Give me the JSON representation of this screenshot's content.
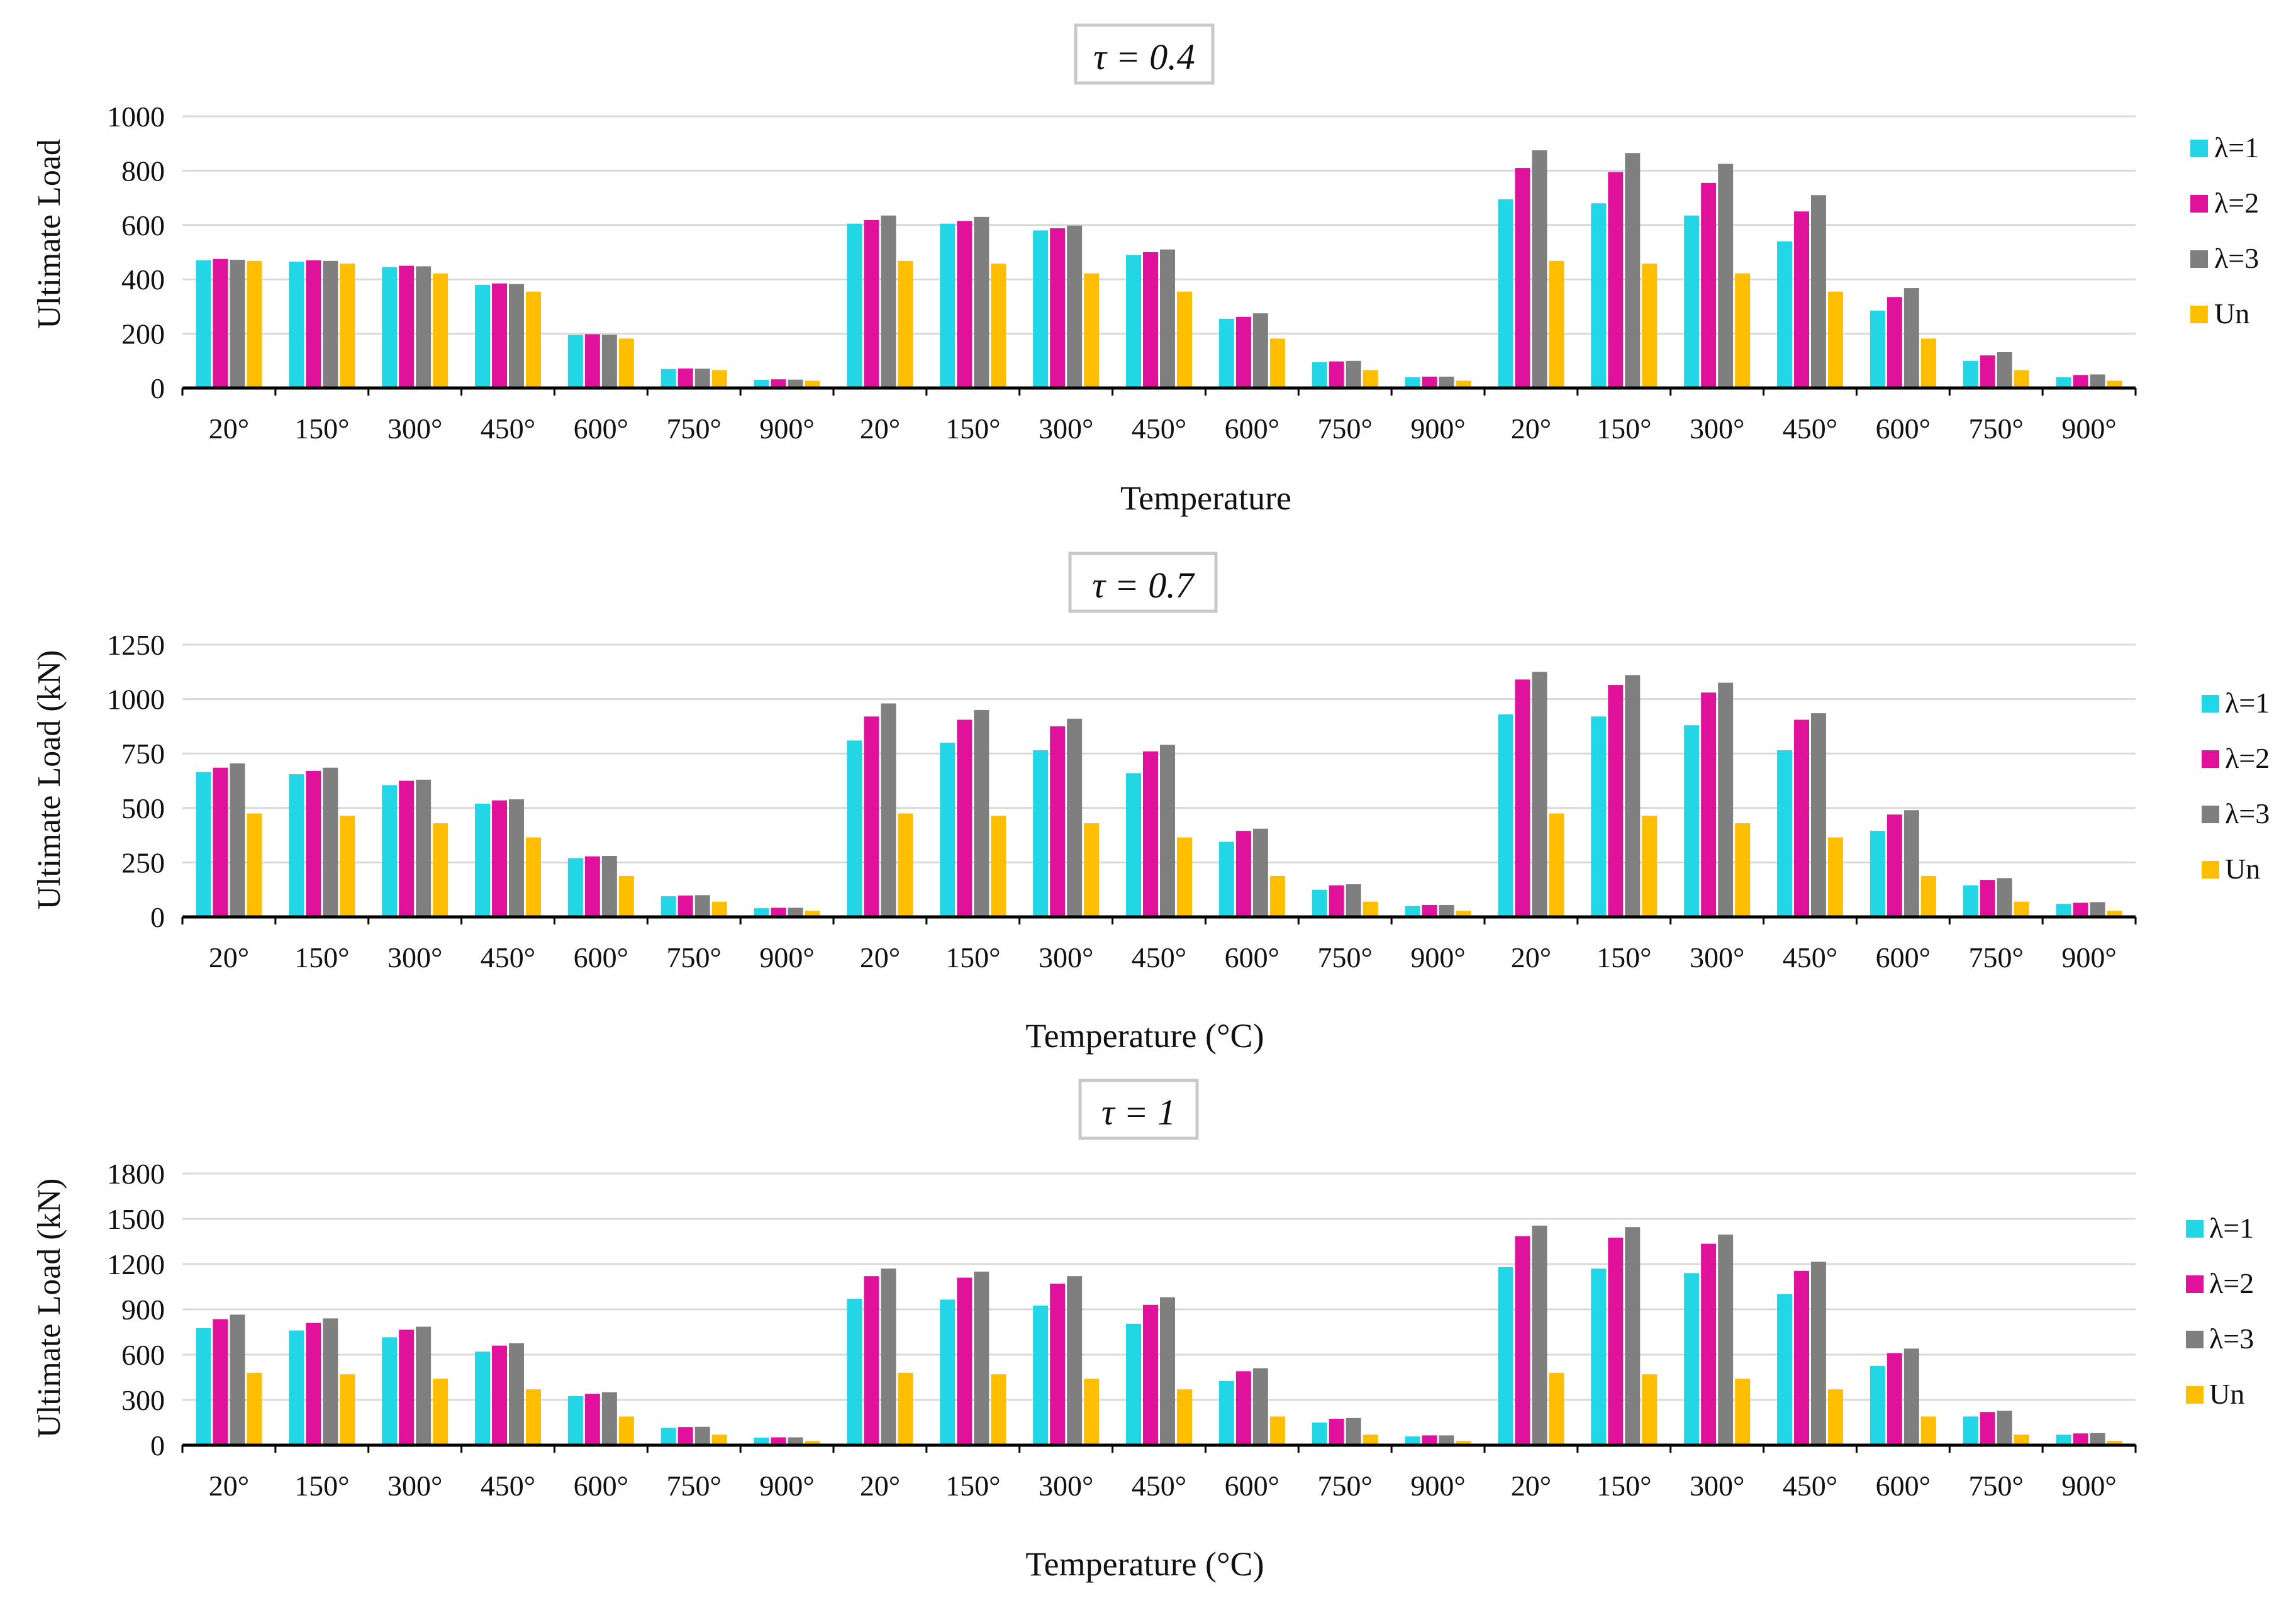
{
  "colors": {
    "lambda1": "#22d6e6",
    "lambda2": "#e0129b",
    "lambda3": "#7f7f7f",
    "un": "#ffbf00",
    "grid": "#d9d9d9",
    "axis": "#000000",
    "title_box_border": "#c8c8c8"
  },
  "chart_data": [
    {
      "type": "bar",
      "title": "τ = 0.4",
      "xlabel": "Temperature",
      "ylabel": "Ultimate Load",
      "ylim": [
        0,
        1000
      ],
      "yticks": [
        "0",
        "200",
        "400",
        "600",
        "800",
        "1000"
      ],
      "categories": [
        "20°",
        "150°",
        "300°",
        "450°",
        "600°",
        "750°",
        "900°",
        "20°",
        "150°",
        "300°",
        "450°",
        "600°",
        "750°",
        "900°",
        "20°",
        "150°",
        "300°",
        "450°",
        "600°",
        "750°",
        "900°"
      ],
      "legend_position": "right",
      "series": [
        {
          "name": "λ=1",
          "values": [
            470,
            465,
            445,
            380,
            195,
            70,
            30,
            605,
            605,
            580,
            490,
            255,
            95,
            40,
            695,
            680,
            635,
            540,
            285,
            100,
            40
          ]
        },
        {
          "name": "λ=2",
          "values": [
            475,
            470,
            450,
            385,
            198,
            72,
            32,
            618,
            615,
            588,
            500,
            262,
            98,
            42,
            810,
            795,
            755,
            650,
            335,
            120,
            48
          ]
        },
        {
          "name": "λ=3",
          "values": [
            472,
            468,
            448,
            383,
            196,
            71,
            31,
            635,
            630,
            598,
            510,
            275,
            100,
            42,
            875,
            865,
            825,
            710,
            368,
            132,
            50
          ]
        },
        {
          "name": "Un",
          "values": [
            468,
            458,
            422,
            355,
            182,
            66,
            27,
            468,
            458,
            422,
            355,
            182,
            66,
            27,
            468,
            458,
            422,
            355,
            182,
            66,
            27
          ]
        }
      ]
    },
    {
      "type": "bar",
      "title": "τ = 0.7",
      "xlabel": "Temperature (°C)",
      "ylabel": "Ultimate Load (kN)",
      "ylim": [
        0,
        1250
      ],
      "yticks": [
        "0",
        "250",
        "500",
        "750",
        "1000",
        "1250"
      ],
      "categories": [
        "20°",
        "150°",
        "300°",
        "450°",
        "600°",
        "750°",
        "900°",
        "20°",
        "150°",
        "300°",
        "450°",
        "600°",
        "750°",
        "900°",
        "20°",
        "150°",
        "300°",
        "450°",
        "600°",
        "750°",
        "900°"
      ],
      "legend_position": "right",
      "series": [
        {
          "name": "λ=1",
          "values": [
            665,
            655,
            605,
            520,
            270,
            95,
            40,
            810,
            800,
            765,
            660,
            345,
            125,
            50,
            930,
            920,
            880,
            765,
            395,
            145,
            60
          ]
        },
        {
          "name": "λ=2",
          "values": [
            685,
            670,
            625,
            535,
            278,
            98,
            42,
            920,
            905,
            875,
            760,
            395,
            145,
            55,
            1090,
            1065,
            1030,
            905,
            470,
            170,
            65
          ]
        },
        {
          "name": "λ=3",
          "values": [
            705,
            685,
            630,
            540,
            280,
            100,
            42,
            980,
            950,
            910,
            790,
            405,
            150,
            55,
            1125,
            1110,
            1075,
            935,
            490,
            178,
            68
          ]
        },
        {
          "name": "Un",
          "values": [
            475,
            465,
            430,
            365,
            188,
            70,
            28,
            475,
            465,
            430,
            365,
            188,
            70,
            28,
            475,
            465,
            430,
            365,
            188,
            70,
            28
          ]
        }
      ]
    },
    {
      "type": "bar",
      "title": "τ = 1",
      "xlabel": "Temperature (°C)",
      "ylabel": "Ultimate Load (kN)",
      "ylim": [
        0,
        1800
      ],
      "yticks": [
        "0",
        "300",
        "600",
        "900",
        "1200",
        "1500",
        "1800"
      ],
      "categories": [
        "20°",
        "150°",
        "300°",
        "450°",
        "600°",
        "750°",
        "900°",
        "20°",
        "150°",
        "300°",
        "450°",
        "600°",
        "750°",
        "900°",
        "20°",
        "150°",
        "300°",
        "450°",
        "600°",
        "750°",
        "900°"
      ],
      "legend_position": "right",
      "series": [
        {
          "name": "λ=1",
          "values": [
            775,
            760,
            715,
            620,
            325,
            115,
            50,
            970,
            965,
            925,
            805,
            425,
            150,
            58,
            1180,
            1170,
            1140,
            1000,
            525,
            190,
            70
          ]
        },
        {
          "name": "λ=2",
          "values": [
            835,
            810,
            765,
            660,
            340,
            120,
            52,
            1120,
            1110,
            1070,
            930,
            490,
            175,
            65,
            1385,
            1375,
            1335,
            1155,
            610,
            220,
            78
          ]
        },
        {
          "name": "λ=3",
          "values": [
            865,
            840,
            785,
            675,
            350,
            122,
            52,
            1170,
            1150,
            1120,
            980,
            510,
            180,
            65,
            1455,
            1445,
            1395,
            1215,
            640,
            228,
            80
          ]
        },
        {
          "name": "Un",
          "values": [
            480,
            470,
            440,
            370,
            190,
            70,
            28,
            480,
            470,
            440,
            370,
            190,
            70,
            28,
            480,
            470,
            440,
            370,
            190,
            70,
            28
          ]
        }
      ]
    }
  ]
}
